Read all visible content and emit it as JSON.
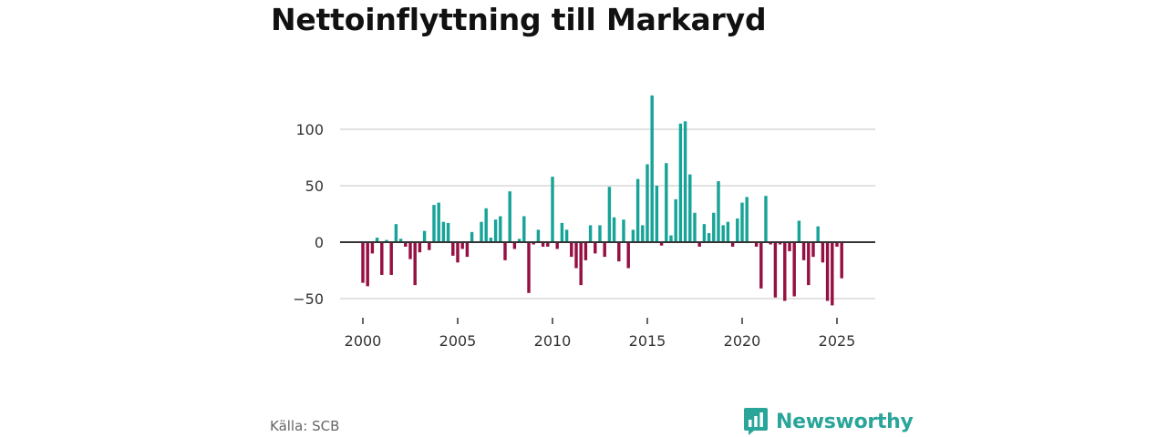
{
  "title": "Nettoinflyttning till Markaryd",
  "source": "Källa: SCB",
  "brand": {
    "name": "Newsworthy",
    "icon": "bar-chart-logo-icon",
    "color": "#2aa59a"
  },
  "colors": {
    "positive": "#17a398",
    "negative": "#960f42",
    "grid": "#d9d9d9",
    "zero": "#333333"
  },
  "chart_data": {
    "type": "bar",
    "title": "Nettoinflyttning till Markaryd",
    "xlabel": "",
    "ylabel": "",
    "ylim": [
      -60,
      130
    ],
    "xlim": [
      1999.0,
      2026.0
    ],
    "yticks": [
      100,
      50,
      0,
      -50
    ],
    "ytick_labels": [
      "100",
      "50",
      "0",
      "−50"
    ],
    "xticks": [
      2000,
      2005,
      2010,
      2015,
      2020,
      2025
    ],
    "xtick_labels": [
      "2000",
      "2005",
      "2010",
      "2015",
      "2020",
      "2025"
    ],
    "frequency": "quarterly",
    "start": 2000.0,
    "step": 0.25,
    "values": [
      -36,
      -39,
      -10,
      4,
      -29,
      2,
      -29,
      16,
      3,
      -4,
      -15,
      -38,
      -9,
      10,
      -7,
      33,
      35,
      18,
      17,
      -12,
      -18,
      -6,
      -13,
      9,
      0,
      18,
      30,
      4,
      20,
      23,
      -16,
      45,
      -6,
      3,
      23,
      -45,
      -2,
      11,
      -4,
      -4,
      58,
      -6,
      17,
      11,
      -13,
      -23,
      -38,
      -16,
      15,
      -10,
      15,
      -13,
      49,
      22,
      -17,
      20,
      -23,
      11,
      56,
      15,
      69,
      130,
      50,
      -3,
      70,
      6,
      38,
      105,
      107,
      60,
      26,
      -4,
      16,
      8,
      26,
      54,
      15,
      18,
      -4,
      21,
      35,
      40,
      0,
      -4,
      -41,
      41,
      -2,
      -49,
      -2,
      -52,
      -8,
      -48,
      19,
      -16,
      -38,
      -13,
      14,
      -18,
      -52,
      -56,
      -4,
      -32
    ]
  }
}
